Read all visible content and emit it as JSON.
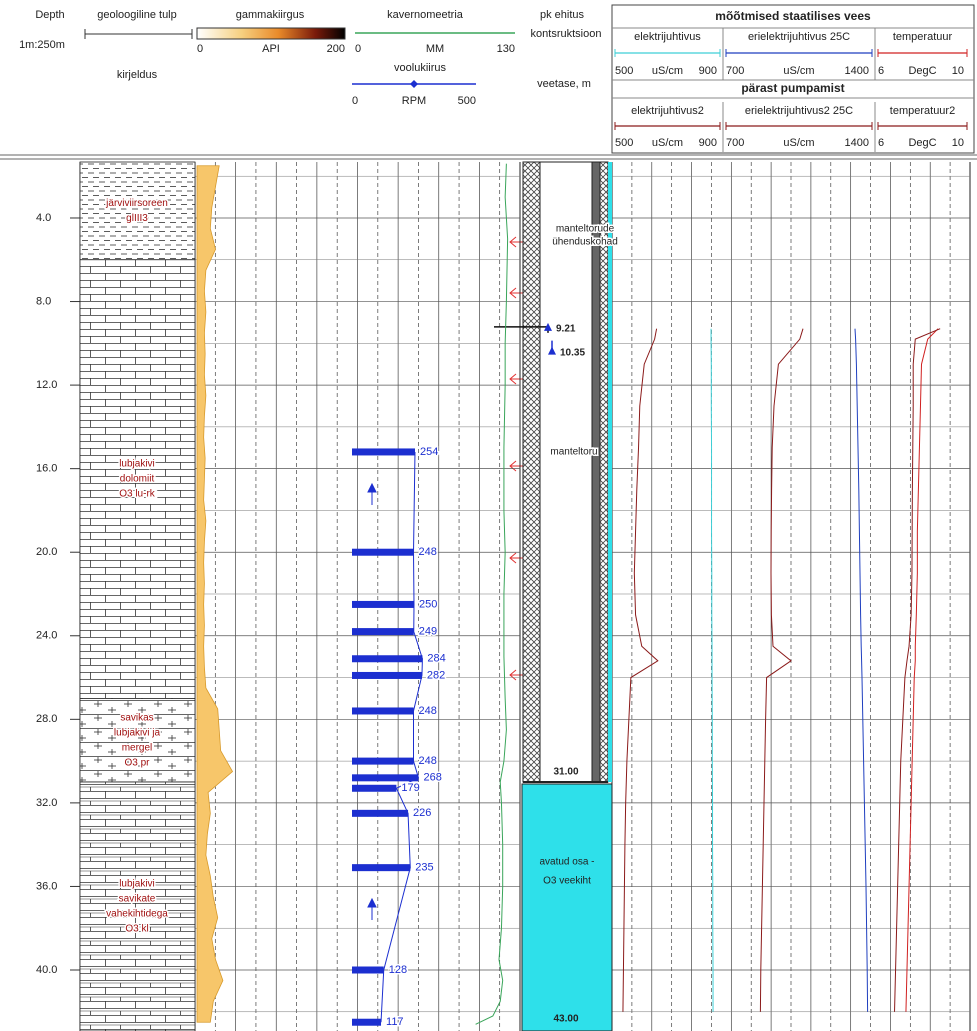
{
  "chart_data": {
    "type": "well-log",
    "depth_title": "Depth",
    "scale_note": "1m:250m",
    "ylim": [
      1.32,
      42.92
    ],
    "yticks": [
      {
        "value": 4,
        "label": "4.0"
      },
      {
        "value": 8,
        "label": "8.0"
      },
      {
        "value": 12,
        "label": "12.0"
      },
      {
        "value": 16,
        "label": "16.0"
      },
      {
        "value": 20,
        "label": "20.0"
      },
      {
        "value": 24,
        "label": "24.0"
      },
      {
        "value": 28,
        "label": "28.0"
      },
      {
        "value": 32,
        "label": "32.0"
      },
      {
        "value": 36,
        "label": "36.0"
      },
      {
        "value": 40,
        "label": "40.0"
      }
    ],
    "grid": true,
    "lithology": {
      "title": "geoloogiline tulp",
      "subtitle": "kirjeldus",
      "layers": [
        {
          "top": 1.32,
          "bottom": 6.0,
          "pattern": "clay",
          "label": [
            "järviviirsoreen",
            "glIII3"
          ]
        },
        {
          "top": 6.0,
          "bottom": 27.0,
          "pattern": "limestone",
          "label": [
            "lubjakivi",
            "dolomiit",
            "O3 lu-rk"
          ]
        },
        {
          "top": 27.0,
          "bottom": 31.0,
          "pattern": "marl",
          "label": [
            "savikas",
            "lubjakivi ja",
            "mergel",
            "O3 pr"
          ]
        },
        {
          "top": 31.0,
          "bottom": 42.92,
          "pattern": "clayey",
          "label": [
            "lubjakivi",
            "savikate",
            "vahekihtidega",
            "O3 kl"
          ]
        }
      ]
    },
    "gamma": {
      "title": "gammakiirgus",
      "unit": "API",
      "xlim": [
        0,
        200
      ],
      "xticks": [
        0,
        200
      ],
      "color": "#f7c66a",
      "depth": [
        1.5,
        2.5,
        3.5,
        4.5,
        5.5,
        6.5,
        7.5,
        8.5,
        9.5,
        10.5,
        11.5,
        12.5,
        13.5,
        14.5,
        15.5,
        16.5,
        17.5,
        18.5,
        19.5,
        20.5,
        21.5,
        22.5,
        23.5,
        24.5,
        25.5,
        26.5,
        27.5,
        28.5,
        29.5,
        30.5,
        31.5,
        32.5,
        33.5,
        34.5,
        35.5,
        36.5,
        37.5,
        38.5,
        39.5,
        40.5,
        41.5,
        42.5
      ],
      "values": [
        30,
        25,
        20,
        18,
        25,
        12,
        10,
        12,
        10,
        11,
        10,
        12,
        10,
        9,
        11,
        10,
        9,
        12,
        10,
        9,
        10,
        9,
        10,
        9,
        10,
        12,
        28,
        30,
        32,
        48,
        15,
        18,
        14,
        12,
        18,
        22,
        28,
        20,
        25,
        35,
        22,
        18
      ]
    },
    "caliper": {
      "title": "kavernomeetria",
      "unit": "MM",
      "xlim": [
        0,
        130
      ],
      "xticks": [
        0,
        130
      ],
      "color": "#3aa55a",
      "depth": [
        1.4,
        3,
        5,
        8,
        10,
        12,
        15,
        18,
        20,
        22,
        25,
        27,
        28.5,
        30,
        31,
        32,
        34,
        36,
        38,
        39.5,
        40.5,
        41.5,
        42.2,
        42.6
      ],
      "values": [
        123,
        122,
        124,
        123,
        122,
        122,
        121,
        121,
        122,
        121,
        121,
        122,
        123,
        121,
        118,
        119,
        120,
        120,
        119,
        117,
        120,
        118,
        112,
        98
      ]
    },
    "flow": {
      "title": "voolukiirus",
      "unit": "RPM",
      "xlim": [
        0,
        500
      ],
      "xticks": [
        0,
        500
      ],
      "color": "#1c2fd0",
      "depth": [
        15.2,
        20.0,
        22.5,
        23.8,
        25.1,
        25.9,
        27.6,
        30.0,
        30.8,
        31.3,
        32.5,
        35.1,
        40.0,
        42.5
      ],
      "values": [
        254,
        248,
        250,
        249,
        284,
        282,
        248,
        248,
        268,
        179,
        226,
        235,
        128,
        117
      ]
    },
    "construction": {
      "title": "pk ehitus",
      "subtitle": "kontsruktsioon",
      "water_title": "veetase, m",
      "water_levels": [
        9.21,
        10.35
      ],
      "casing_bottom": {
        "value": 31,
        "label": "31.00"
      },
      "hole_bottom": {
        "value": 43,
        "label": "43.00"
      },
      "notes": [
        [
          "manteltorude",
          "ühenduskohad"
        ],
        [
          "manteltoru"
        ],
        [
          "avatud osa -",
          "O3 veekiht"
        ]
      ]
    },
    "measurements": {
      "depth": [
        9.3,
        9.8,
        11,
        13,
        15,
        17,
        19,
        21,
        23,
        24.5,
        25.2,
        26,
        28,
        30,
        32,
        34,
        36,
        38,
        40,
        42
      ],
      "groups": [
        {
          "title": "mõõtmised staatilises vees",
          "series": [
            {
              "name": "elektrijuhtivus",
              "unit": "uS/cm",
              "xlim": [
                500,
                900
              ],
              "xticks": [
                500,
                900
              ],
              "color": "#3fcfd6",
              "values": [
                880,
                880,
                881,
                881,
                882,
                882,
                882,
                883,
                883,
                884,
                884,
                884,
                885,
                885,
                886,
                886,
                887,
                887,
                888,
                888
              ]
            },
            {
              "name": "erielektrijuhtivus 25C",
              "unit": "uS/cm",
              "xlim": [
                700,
                1400
              ],
              "xticks": [
                700,
                1400
              ],
              "color": "#1f3fbf",
              "values": [
                1335,
                1338,
                1342,
                1346,
                1350,
                1354,
                1357,
                1360,
                1363,
                1366,
                1368,
                1370,
                1374,
                1378,
                1382,
                1386,
                1390,
                1393,
                1396,
                1398
              ]
            },
            {
              "name": "temperatuur",
              "unit": "DegC",
              "xlim": [
                6,
                10
              ],
              "xticks": [
                6,
                10
              ],
              "color": "#d02020",
              "values": [
                8.8,
                8.3,
                8.0,
                7.95,
                7.9,
                7.85,
                7.8,
                7.8,
                7.75,
                7.7,
                7.7,
                7.65,
                7.6,
                7.55,
                7.5,
                7.45,
                7.4,
                7.35,
                7.3,
                7.25
              ]
            }
          ]
        },
        {
          "title": "pärast pumpamist",
          "series": [
            {
              "name": "elektrijuhtivus2",
              "unit": "uS/cm",
              "xlim": [
                500,
                900
              ],
              "xticks": [
                500,
                900
              ],
              "color": "#8b1a1a",
              "values": [
                660,
                652,
                610,
                592,
                587,
                580,
                575,
                570,
                575,
                600,
                665,
                556,
                548,
                540,
                535,
                532,
                530,
                528,
                526,
                524
              ]
            },
            {
              "name": "erielektrijuhtivus2 25C",
              "unit": "uS/cm",
              "xlim": [
                700,
                1400
              ],
              "xticks": [
                700,
                1400
              ],
              "color": "#8b1a1a",
              "values": [
                1075,
                1059,
                952,
                930,
                921,
                918,
                916,
                915,
                917,
                925,
                1015,
                893,
                888,
                884,
                880,
                876,
                872,
                868,
                864,
                862
              ]
            },
            {
              "name": "temperatuur2",
              "unit": "DegC",
              "xlim": [
                6,
                10
              ],
              "xticks": [
                6,
                10
              ],
              "color": "#8b1a1a",
              "values": [
                8.9,
                7.7,
                7.6,
                7.6,
                7.58,
                7.56,
                7.55,
                7.54,
                7.5,
                7.4,
                7.3,
                7.2,
                7.1,
                7.0,
                6.95,
                6.9,
                6.85,
                6.8,
                6.75,
                6.7
              ]
            }
          ]
        }
      ]
    }
  }
}
